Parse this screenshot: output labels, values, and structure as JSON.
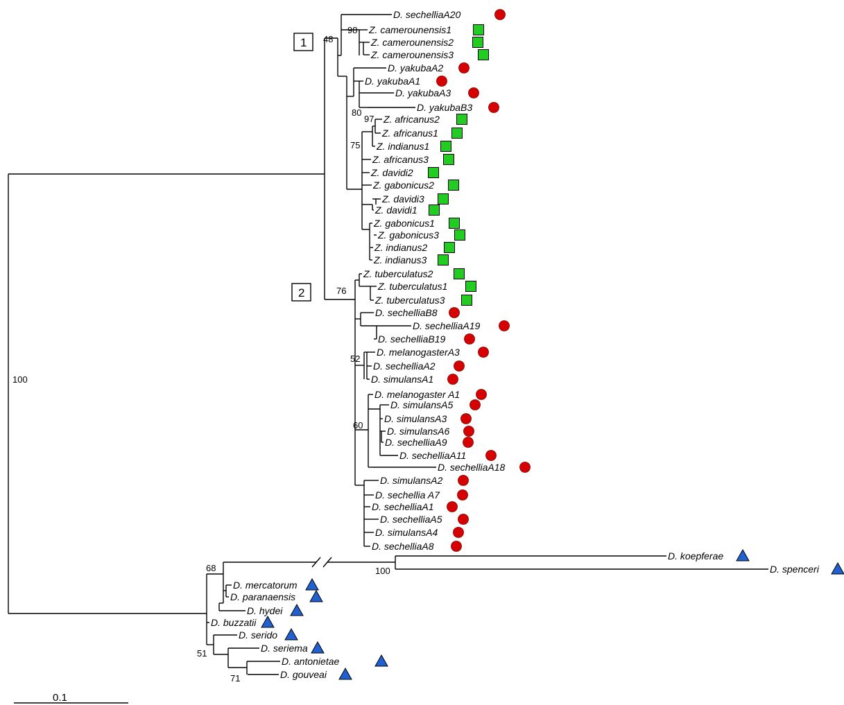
{
  "colors": {
    "circle": "#d60000",
    "square": "#22cc22",
    "triangle": "#2060d0",
    "line": "#000000"
  },
  "marker_legend": {
    "circle": "red-circle",
    "square": "green-square",
    "triangle": "blue-triangle"
  },
  "scale_bar": {
    "label": "0.1"
  },
  "clade_labels": [
    "1",
    "2"
  ],
  "support_values": [
    "48",
    "98",
    "80",
    "97",
    "75",
    "76",
    "52",
    "60",
    "100",
    "68",
    "100",
    "51",
    "71"
  ],
  "taxa": [
    {
      "name": "D. sechelliaA20",
      "marker": "circle"
    },
    {
      "name": "Z. camerounensis1",
      "marker": "square"
    },
    {
      "name": "Z. camerounensis2",
      "marker": "square"
    },
    {
      "name": "Z. camerounensis3",
      "marker": "square"
    },
    {
      "name": "D. yakubaA2",
      "marker": "circle"
    },
    {
      "name": "D. yakubaA1",
      "marker": "circle"
    },
    {
      "name": "D. yakubaA3",
      "marker": "circle"
    },
    {
      "name": "D. yakubaB3",
      "marker": "circle"
    },
    {
      "name": "Z. africanus2",
      "marker": "square"
    },
    {
      "name": "Z. africanus1",
      "marker": "square"
    },
    {
      "name": "Z. indianus1",
      "marker": "square"
    },
    {
      "name": "Z. africanus3",
      "marker": "square"
    },
    {
      "name": "Z. davidi2",
      "marker": "square"
    },
    {
      "name": "Z. gabonicus2",
      "marker": "square"
    },
    {
      "name": "Z. davidi3",
      "marker": "square"
    },
    {
      "name": "Z. davidi1",
      "marker": "square"
    },
    {
      "name": "Z. gabonicus1",
      "marker": "square"
    },
    {
      "name": "Z. gabonicus3",
      "marker": "square"
    },
    {
      "name": "Z. indianus2",
      "marker": "square"
    },
    {
      "name": "Z. indianus3",
      "marker": "square"
    },
    {
      "name": "Z. tuberculatus2",
      "marker": "square"
    },
    {
      "name": "Z. tuberculatus1",
      "marker": "square"
    },
    {
      "name": "Z. tuberculatus3",
      "marker": "square"
    },
    {
      "name": "D. sechelliaB8",
      "marker": "circle"
    },
    {
      "name": "D. sechelliaA19",
      "marker": "circle"
    },
    {
      "name": "D. sechelliaB19",
      "marker": "circle"
    },
    {
      "name": "D. melanogasterA3",
      "marker": "circle"
    },
    {
      "name": "D. sechelliaA2",
      "marker": "circle"
    },
    {
      "name": "D. simulansA1",
      "marker": "circle"
    },
    {
      "name": "D. melanogaster A1",
      "marker": "circle"
    },
    {
      "name": "D. simulansA5",
      "marker": "circle"
    },
    {
      "name": "D. simulansA3",
      "marker": "circle"
    },
    {
      "name": "D. simulansA6",
      "marker": "circle"
    },
    {
      "name": "D. sechelliaA9",
      "marker": "circle"
    },
    {
      "name": "D. sechelliaA11",
      "marker": "circle"
    },
    {
      "name": "D. sechelliaA18",
      "marker": "circle"
    },
    {
      "name": "D. simulansA2",
      "marker": "circle"
    },
    {
      "name": "D. sechellia A7",
      "marker": "circle"
    },
    {
      "name": "D. sechelliaA1",
      "marker": "circle"
    },
    {
      "name": "D. sechelliaA5",
      "marker": "circle"
    },
    {
      "name": "D. simulansA4",
      "marker": "circle"
    },
    {
      "name": "D. sechelliaA8",
      "marker": "circle"
    },
    {
      "name": "D. koepferae",
      "marker": "triangle"
    },
    {
      "name": "D. spenceri",
      "marker": "triangle"
    },
    {
      "name": "D. mercatorum",
      "marker": "triangle"
    },
    {
      "name": "D. paranaensis",
      "marker": "triangle"
    },
    {
      "name": "D. hydei",
      "marker": "triangle"
    },
    {
      "name": "D. buzzatii",
      "marker": "triangle"
    },
    {
      "name": "D. serido",
      "marker": "triangle"
    },
    {
      "name": "D. seriema",
      "marker": "triangle"
    },
    {
      "name": "D. antonietae",
      "marker": "triangle"
    },
    {
      "name": "D. gouveai",
      "marker": "triangle"
    }
  ]
}
